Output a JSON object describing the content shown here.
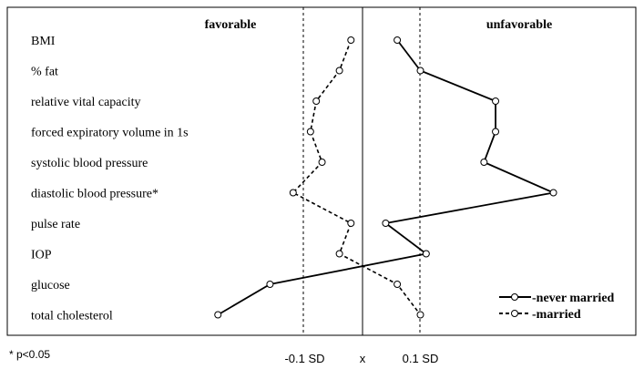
{
  "chart_data": {
    "type": "line",
    "orientation": "horizontal-profile",
    "favorable_label": "favorable",
    "unfavorable_label": "unfavorable",
    "footnote": "* p<0.05",
    "x_ticks": [
      {
        "value": -0.1,
        "label": "-0.1 SD"
      },
      {
        "value": 0,
        "label": "x"
      },
      {
        "value": 0.1,
        "label": "0.1 SD"
      }
    ],
    "xlim": [
      -0.4,
      0.4
    ],
    "grid": false,
    "legend_position": "bottom-right",
    "categories": [
      "BMI",
      "% fat",
      "relative vital capacity",
      "forced expiratory volume in 1s",
      "systolic blood pressure",
      "diastolic blood pressure*",
      "pulse rate",
      "IOP",
      "glucose",
      "total cholesterol"
    ],
    "series": [
      {
        "name": "-never married",
        "line_style": "solid",
        "values": [
          0.06,
          0.1,
          0.23,
          0.23,
          0.21,
          0.33,
          0.04,
          0.11,
          -0.16,
          -0.25
        ]
      },
      {
        "name": "-married",
        "line_style": "dashed",
        "values": [
          -0.02,
          -0.04,
          -0.08,
          -0.09,
          -0.07,
          -0.12,
          -0.02,
          -0.04,
          0.06,
          0.1
        ]
      }
    ]
  }
}
